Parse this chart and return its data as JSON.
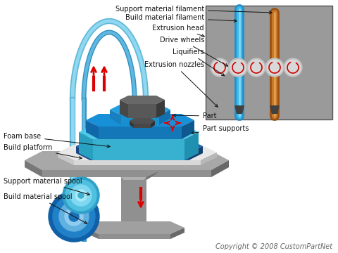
{
  "background_color": "#ffffff",
  "copyright_text": "Copyright © 2008 CustomPartNet",
  "copyright_fontsize": 7,
  "copyright_color": "#666666",
  "labels": {
    "support_material_filament": "Support material filament",
    "build_material_filament": "Build material filament",
    "extrusion_head": "Extrusion head",
    "drive_wheels": "Drive wheels",
    "liquifiers": "Liquifiers",
    "extrusion_nozzles": "Extrusion nozzles",
    "foam_base": "Foam base",
    "build_platform": "Build platform",
    "part": "Part",
    "part_supports": "Part supports",
    "support_material_spool": "Support material spool",
    "build_material_spool": "Build material spool"
  },
  "figsize": [
    4.8,
    3.6
  ],
  "dpi": 100
}
